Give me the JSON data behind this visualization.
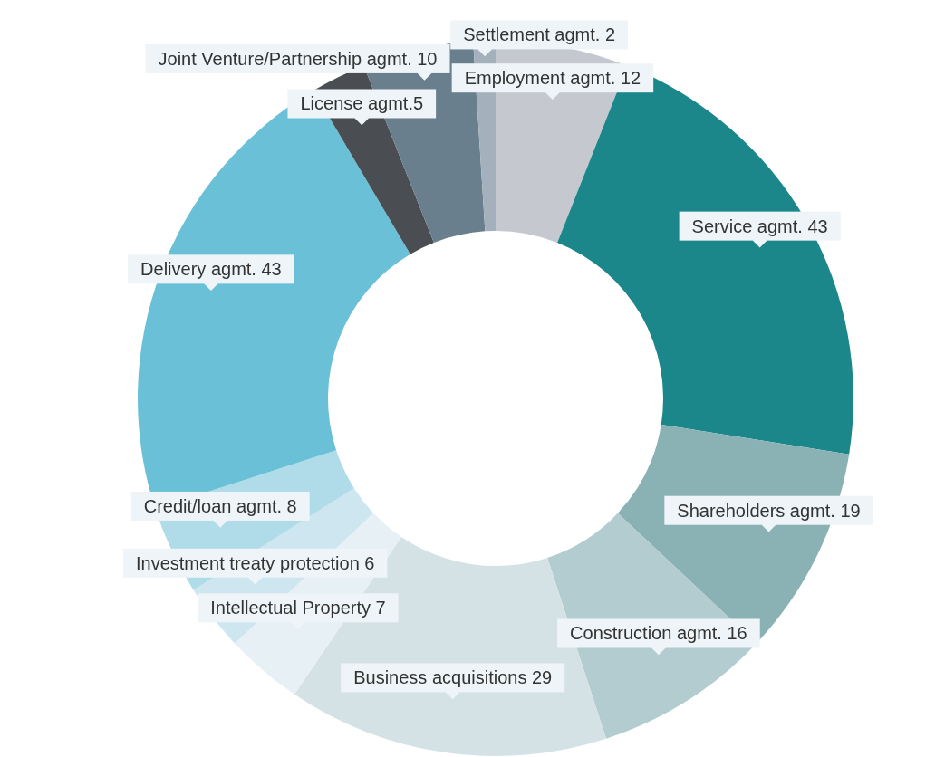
{
  "chart_data": {
    "type": "donut",
    "categories": [
      "Employment agmt. 12",
      "Service agmt. 43",
      "Shareholders agmt. 19",
      "Construction agmt. 16",
      "Business acquisitions 29",
      "Intellectual Property 7",
      "Investment treaty protection 6",
      "Credit/loan agmt. 8",
      "Delivery agmt. 43",
      "License agmt.5",
      "Joint Venture/Partnership agmt. 10",
      "Settlement agmt. 2"
    ],
    "values": [
      12,
      43,
      19,
      16,
      29,
      7,
      6,
      8,
      43,
      5,
      10,
      2
    ],
    "colors": [
      "#c5c9cf",
      "#1b878b",
      "#8ab2b5",
      "#b2cccf",
      "#d5e2e5",
      "#e6f0f5",
      "#cde6ef",
      "#b0dbe8",
      "#6ac1d7",
      "#4a4e52",
      "#6a7f8e",
      "#a4b1bc"
    ]
  }
}
